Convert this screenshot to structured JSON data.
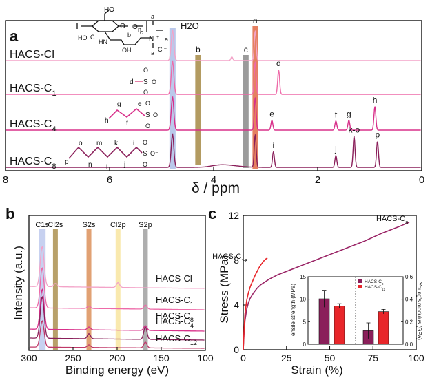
{
  "panels": {
    "a": "a",
    "b": "b",
    "c": "c"
  },
  "chart_data": [
    {
      "panel": "a",
      "type": "line",
      "xlabel": "δ / ppm",
      "x_ticks": [
        8,
        6,
        4,
        2,
        0
      ],
      "xlim": [
        8,
        0
      ],
      "bands": [
        {
          "label": "H2O",
          "ppm": 4.79,
          "color": "#aebfe8"
        },
        {
          "label": "b",
          "ppm": 4.3,
          "color": "#a68a45"
        },
        {
          "label": "c",
          "ppm": 3.38,
          "color": "#8a8a8a"
        },
        {
          "label": "a",
          "ppm": 3.2,
          "color": "#e06a45"
        }
      ],
      "series": [
        {
          "name": "HACS-Cl",
          "color": "#f3a3c8",
          "peaks": [
            {
              "ppm": 4.79,
              "height": 1.0
            },
            {
              "ppm": 3.2,
              "height": 1.0
            },
            {
              "ppm": 3.65,
              "height": 0.12
            }
          ]
        },
        {
          "name": "HACS-C1",
          "color": "#ee6aa8",
          "peaks": [
            {
              "ppm": 4.79,
              "height": 1.0
            },
            {
              "ppm": 3.2,
              "height": 1.0
            },
            {
              "ppm": 2.75,
              "height": 0.75,
              "label": "d"
            }
          ]
        },
        {
          "name": "HACS-C4",
          "color": "#d8308a",
          "peaks": [
            {
              "ppm": 4.79,
              "height": 1.0
            },
            {
              "ppm": 3.2,
              "height": 1.0
            },
            {
              "ppm": 2.88,
              "height": 0.3,
              "label": "e"
            },
            {
              "ppm": 1.65,
              "height": 0.28,
              "label": "f"
            },
            {
              "ppm": 1.4,
              "height": 0.3,
              "label": "g"
            },
            {
              "ppm": 0.9,
              "height": 0.72,
              "label": "h"
            }
          ]
        },
        {
          "name": "HACS-C8",
          "color": "#8a1f5a",
          "peaks": [
            {
              "ppm": 4.79,
              "height": 1.0
            },
            {
              "ppm": 3.2,
              "height": 1.0
            },
            {
              "ppm": 2.85,
              "height": 0.48,
              "label": "i"
            },
            {
              "ppm": 1.65,
              "height": 0.36,
              "label": "j"
            },
            {
              "ppm": 1.3,
              "height": 0.95,
              "label": "k-o"
            },
            {
              "ppm": 0.85,
              "height": 0.8,
              "label": "p"
            }
          ]
        }
      ],
      "structure_labels": {
        "backbone": [
          "O",
          "O",
          "n",
          "HO",
          "HN",
          "OH",
          "N",
          "a",
          "a",
          "a",
          "b",
          "c",
          "C",
          "Cl⁻",
          "+",
          "HO"
        ],
        "c1": [
          "d",
          "S",
          "O",
          "O",
          "O⁻"
        ],
        "c4": [
          "g",
          "e",
          "h",
          "f",
          "S",
          "O",
          "O",
          "O⁻"
        ],
        "c8": [
          "p",
          "o",
          "m",
          "k",
          "i",
          "n",
          "l",
          "j",
          "S",
          "O",
          "O",
          "O⁻"
        ]
      },
      "h2o_label": "H2O"
    },
    {
      "panel": "b",
      "type": "line",
      "xlabel": "Binding energy (eV)",
      "ylabel": "Intensity (a.u.)",
      "x_ticks": [
        300,
        250,
        200,
        150,
        100
      ],
      "xlim": [
        300,
        100
      ],
      "bands": [
        {
          "label": "C1s",
          "ev": 285,
          "color": "#b9c6ec"
        },
        {
          "label": "Cl2s",
          "ev": 270,
          "color": "#a68a45"
        },
        {
          "label": "S2s",
          "ev": 232,
          "color": "#d98a50"
        },
        {
          "label": "Cl2p",
          "ev": 199,
          "color": "#f7e39a"
        },
        {
          "label": "S2p",
          "ev": 168,
          "color": "#9a9a9a"
        }
      ],
      "series": [
        {
          "name": "HACS-Cl",
          "color": "#f3a3c8",
          "peaks": [
            {
              "ev": 285,
              "height": 1.0
            },
            {
              "ev": 270,
              "height": 0.08
            },
            {
              "ev": 199,
              "height": 0.12
            }
          ]
        },
        {
          "name": "HACS-C1",
          "color": "#ee6aa8",
          "peaks": [
            {
              "ev": 285,
              "height": 1.0
            },
            {
              "ev": 232,
              "height": 0.06
            },
            {
              "ev": 168,
              "height": 0.1
            }
          ]
        },
        {
          "name": "HACS-C4",
          "color": "#d8308a",
          "peaks": [
            {
              "ev": 285,
              "height": 1.0
            },
            {
              "ev": 232,
              "height": 0.07
            },
            {
              "ev": 168,
              "height": 0.12
            }
          ]
        },
        {
          "name": "HACS-C8",
          "color": "#8a1f5a",
          "peaks": [
            {
              "ev": 285,
              "height": 1.0
            },
            {
              "ev": 232,
              "height": 0.12
            },
            {
              "ev": 168,
              "height": 0.3
            }
          ]
        },
        {
          "name": "HACS-C12",
          "color": "#c03868",
          "peaks": [
            {
              "ev": 285,
              "height": 1.0
            },
            {
              "ev": 232,
              "height": 0.1
            },
            {
              "ev": 168,
              "height": 0.22
            }
          ]
        }
      ]
    },
    {
      "panel": "c",
      "type": "line",
      "xlabel": "Strain (%)",
      "ylabel": "Stress (MPa)",
      "x_ticks": [
        0,
        25,
        50,
        75,
        100
      ],
      "y_ticks": [
        0,
        4,
        8,
        12
      ],
      "xlim": [
        0,
        100
      ],
      "ylim": [
        0,
        12
      ],
      "series": [
        {
          "name": "HACS-C8",
          "color": "#9a2466",
          "x": [
            0,
            0.5,
            1,
            2,
            3,
            4,
            6,
            8,
            10,
            15,
            20,
            30,
            40,
            50,
            60,
            70,
            80,
            90,
            96
          ],
          "y": [
            0,
            1.6,
            2.6,
            3.6,
            4.2,
            4.6,
            5.1,
            5.5,
            5.8,
            6.3,
            6.7,
            7.3,
            7.9,
            8.5,
            9.1,
            9.7,
            10.4,
            11.0,
            11.4
          ]
        },
        {
          "name": "HACS-C12",
          "color": "#e8262a",
          "x": [
            0,
            0.5,
            1,
            2,
            3,
            4,
            5,
            6,
            7,
            8,
            9,
            10,
            11,
            12,
            13,
            14
          ],
          "y": [
            0,
            2.0,
            3.2,
            4.4,
            5.1,
            5.6,
            6.0,
            6.35,
            6.7,
            7.0,
            7.3,
            7.55,
            7.75,
            7.95,
            8.1,
            8.2
          ]
        }
      ],
      "inset": {
        "type": "bar",
        "left_ylabel": "Tensile strength (MPa)",
        "right_ylabel": "Young's modulus (GPa)",
        "left_ticks": [
          0,
          5,
          10,
          15
        ],
        "left_ylim": [
          0,
          15
        ],
        "right_ticks": [
          0.0,
          0.2,
          0.4,
          0.6
        ],
        "right_ylim": [
          0,
          0.6
        ],
        "legend": [
          "HACS-C8",
          "HACS-C12"
        ],
        "colors": {
          "HACS-C8": "#8a1f5a",
          "HACS-C12": "#e8262a"
        },
        "tensile_strength": {
          "HACS-C8": 10.1,
          "HACS-C12": 8.5
        },
        "tensile_error": {
          "HACS-C8": 1.9,
          "HACS-C12": 0.5
        },
        "youngs_modulus": {
          "HACS-C8": 0.12,
          "HACS-C12": 0.29
        },
        "youngs_error": {
          "HACS-C8": 0.07,
          "HACS-C12": 0.02
        }
      }
    }
  ]
}
